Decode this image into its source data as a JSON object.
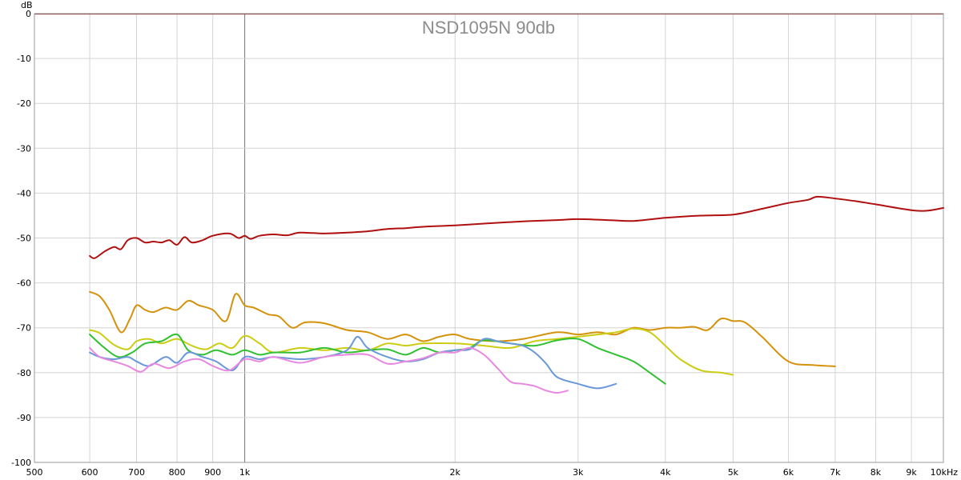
{
  "chart_data": {
    "type": "line",
    "title": "NSD1095N 90db",
    "ylabel": "dB",
    "xlabel": "",
    "x_scale": "log",
    "xlim": [
      500,
      10000
    ],
    "ylim": [
      -100,
      0
    ],
    "grid": true,
    "x_ticks": [
      500,
      600,
      700,
      800,
      900,
      1000,
      2000,
      3000,
      4000,
      5000,
      6000,
      7000,
      8000,
      9000,
      10000
    ],
    "x_tick_labels": [
      "500",
      "600",
      "700",
      "800",
      "900",
      "1k",
      "2k",
      "3k",
      "4k",
      "5k",
      "6k",
      "7k",
      "8k",
      "9k",
      "10kHz"
    ],
    "y_ticks": [
      0,
      -10,
      -20,
      -30,
      -40,
      -50,
      -60,
      -70,
      -80,
      -90,
      -100
    ],
    "y_tick_labels": [
      "0",
      "-10",
      "-20",
      "-30",
      "-40",
      "-50",
      "-60",
      "-70",
      "-80",
      "-90",
      "-100"
    ],
    "series": [
      {
        "color": "#b01010",
        "width": 2,
        "points": [
          [
            600,
            -54
          ],
          [
            610,
            -54.5
          ],
          [
            630,
            -53
          ],
          [
            650,
            -52
          ],
          [
            665,
            -52.5
          ],
          [
            680,
            -50.5
          ],
          [
            700,
            -50
          ],
          [
            720,
            -51
          ],
          [
            740,
            -50.8
          ],
          [
            760,
            -51
          ],
          [
            780,
            -50.5
          ],
          [
            800,
            -51.5
          ],
          [
            820,
            -49.8
          ],
          [
            840,
            -51
          ],
          [
            870,
            -50.5
          ],
          [
            900,
            -49.5
          ],
          [
            950,
            -49
          ],
          [
            980,
            -50
          ],
          [
            1000,
            -49.5
          ],
          [
            1020,
            -50.2
          ],
          [
            1050,
            -49.5
          ],
          [
            1100,
            -49.2
          ],
          [
            1150,
            -49.4
          ],
          [
            1200,
            -48.8
          ],
          [
            1300,
            -49
          ],
          [
            1400,
            -48.8
          ],
          [
            1500,
            -48.5
          ],
          [
            1600,
            -48
          ],
          [
            1700,
            -47.8
          ],
          [
            1800,
            -47.5
          ],
          [
            2000,
            -47.2
          ],
          [
            2200,
            -46.8
          ],
          [
            2500,
            -46.3
          ],
          [
            2800,
            -46
          ],
          [
            3000,
            -45.8
          ],
          [
            3300,
            -46
          ],
          [
            3600,
            -46.2
          ],
          [
            4000,
            -45.5
          ],
          [
            4500,
            -45
          ],
          [
            5000,
            -44.8
          ],
          [
            5500,
            -43.5
          ],
          [
            6000,
            -42.2
          ],
          [
            6400,
            -41.5
          ],
          [
            6600,
            -40.8
          ],
          [
            7000,
            -41.2
          ],
          [
            7500,
            -41.8
          ],
          [
            8000,
            -42.5
          ],
          [
            9000,
            -43.8
          ],
          [
            9500,
            -43.9
          ],
          [
            10000,
            -43.3
          ]
        ]
      },
      {
        "color": "#d4920a",
        "width": 2,
        "points": [
          [
            600,
            -62
          ],
          [
            620,
            -63
          ],
          [
            640,
            -66
          ],
          [
            665,
            -71
          ],
          [
            685,
            -68
          ],
          [
            700,
            -65
          ],
          [
            720,
            -66
          ],
          [
            740,
            -66.5
          ],
          [
            770,
            -65.5
          ],
          [
            800,
            -66
          ],
          [
            830,
            -64
          ],
          [
            860,
            -65
          ],
          [
            900,
            -66
          ],
          [
            940,
            -68.5
          ],
          [
            970,
            -62.5
          ],
          [
            1000,
            -65
          ],
          [
            1030,
            -65.5
          ],
          [
            1080,
            -67
          ],
          [
            1120,
            -67.5
          ],
          [
            1170,
            -70
          ],
          [
            1220,
            -68.8
          ],
          [
            1300,
            -69
          ],
          [
            1400,
            -70.5
          ],
          [
            1500,
            -71
          ],
          [
            1600,
            -72.5
          ],
          [
            1700,
            -71.5
          ],
          [
            1800,
            -73
          ],
          [
            1900,
            -72
          ],
          [
            2000,
            -71.5
          ],
          [
            2100,
            -72.5
          ],
          [
            2300,
            -73
          ],
          [
            2500,
            -72.5
          ],
          [
            2800,
            -71
          ],
          [
            3000,
            -71.5
          ],
          [
            3200,
            -71
          ],
          [
            3400,
            -71.5
          ],
          [
            3600,
            -70
          ],
          [
            3800,
            -70.5
          ],
          [
            4000,
            -70
          ],
          [
            4200,
            -70
          ],
          [
            4400,
            -69.8
          ],
          [
            4600,
            -70.5
          ],
          [
            4800,
            -68
          ],
          [
            5000,
            -68.5
          ],
          [
            5200,
            -68.8
          ],
          [
            5500,
            -72
          ],
          [
            6000,
            -77.5
          ],
          [
            6500,
            -78.3
          ],
          [
            7000,
            -78.6
          ]
        ]
      },
      {
        "color": "#cccc14",
        "width": 2,
        "points": [
          [
            600,
            -70.5
          ],
          [
            620,
            -71.2
          ],
          [
            650,
            -73.8
          ],
          [
            680,
            -74.8
          ],
          [
            700,
            -73
          ],
          [
            730,
            -72.5
          ],
          [
            760,
            -73.5
          ],
          [
            800,
            -72.5
          ],
          [
            840,
            -74
          ],
          [
            880,
            -74.8
          ],
          [
            920,
            -73.5
          ],
          [
            960,
            -74.5
          ],
          [
            1000,
            -71.8
          ],
          [
            1050,
            -73.5
          ],
          [
            1100,
            -75.5
          ],
          [
            1200,
            -74.5
          ],
          [
            1300,
            -75
          ],
          [
            1400,
            -74.5
          ],
          [
            1500,
            -75
          ],
          [
            1600,
            -73.5
          ],
          [
            1700,
            -74
          ],
          [
            1800,
            -73.5
          ],
          [
            2000,
            -73.5
          ],
          [
            2200,
            -74
          ],
          [
            2400,
            -74.5
          ],
          [
            2600,
            -73
          ],
          [
            2800,
            -72.5
          ],
          [
            3000,
            -72
          ],
          [
            3200,
            -71.5
          ],
          [
            3400,
            -71
          ],
          [
            3600,
            -70.2
          ],
          [
            3800,
            -71
          ],
          [
            4000,
            -74
          ],
          [
            4200,
            -77
          ],
          [
            4500,
            -79.5
          ],
          [
            4800,
            -80
          ],
          [
            5000,
            -80.5
          ]
        ]
      },
      {
        "color": "#30c030",
        "width": 2,
        "points": [
          [
            600,
            -71.5
          ],
          [
            630,
            -74.5
          ],
          [
            660,
            -76.5
          ],
          [
            690,
            -75.5
          ],
          [
            720,
            -73.5
          ],
          [
            760,
            -73
          ],
          [
            800,
            -71.5
          ],
          [
            830,
            -75
          ],
          [
            870,
            -76
          ],
          [
            910,
            -75
          ],
          [
            960,
            -76
          ],
          [
            1000,
            -75
          ],
          [
            1050,
            -76
          ],
          [
            1100,
            -75.5
          ],
          [
            1200,
            -75.5
          ],
          [
            1300,
            -74.5
          ],
          [
            1400,
            -75.5
          ],
          [
            1500,
            -75
          ],
          [
            1600,
            -74.8
          ],
          [
            1700,
            -76
          ],
          [
            1800,
            -74.5
          ],
          [
            1900,
            -75.5
          ],
          [
            2000,
            -75
          ],
          [
            2100,
            -74.5
          ],
          [
            2200,
            -72.8
          ],
          [
            2400,
            -73.5
          ],
          [
            2600,
            -74
          ],
          [
            2800,
            -72.8
          ],
          [
            3000,
            -72.5
          ],
          [
            3200,
            -74.5
          ],
          [
            3400,
            -76
          ],
          [
            3600,
            -77.5
          ],
          [
            3800,
            -80
          ],
          [
            4000,
            -82.5
          ]
        ]
      },
      {
        "color": "#6a98d8",
        "width": 2,
        "points": [
          [
            600,
            -75.5
          ],
          [
            620,
            -76.5
          ],
          [
            650,
            -77
          ],
          [
            680,
            -76.5
          ],
          [
            700,
            -77.5
          ],
          [
            730,
            -78.5
          ],
          [
            770,
            -76.5
          ],
          [
            800,
            -77.8
          ],
          [
            830,
            -75.5
          ],
          [
            870,
            -76.5
          ],
          [
            910,
            -77.5
          ],
          [
            960,
            -79.5
          ],
          [
            1000,
            -76.5
          ],
          [
            1050,
            -77
          ],
          [
            1100,
            -76.5
          ],
          [
            1200,
            -77
          ],
          [
            1300,
            -76.5
          ],
          [
            1400,
            -75
          ],
          [
            1450,
            -72
          ],
          [
            1500,
            -74.5
          ],
          [
            1600,
            -76.5
          ],
          [
            1700,
            -77.5
          ],
          [
            1800,
            -77
          ],
          [
            1900,
            -75.5
          ],
          [
            2000,
            -75
          ],
          [
            2100,
            -74.8
          ],
          [
            2200,
            -72.5
          ],
          [
            2300,
            -73
          ],
          [
            2400,
            -73.5
          ],
          [
            2500,
            -74
          ],
          [
            2600,
            -75.5
          ],
          [
            2700,
            -78
          ],
          [
            2800,
            -81
          ],
          [
            3000,
            -82.5
          ],
          [
            3200,
            -83.5
          ],
          [
            3400,
            -82.5
          ]
        ]
      },
      {
        "color": "#e888e0",
        "width": 2,
        "points": [
          [
            600,
            -74.5
          ],
          [
            620,
            -76.5
          ],
          [
            650,
            -77.5
          ],
          [
            680,
            -78.5
          ],
          [
            710,
            -79.8
          ],
          [
            740,
            -78
          ],
          [
            780,
            -79
          ],
          [
            820,
            -77.5
          ],
          [
            860,
            -77
          ],
          [
            900,
            -78.5
          ],
          [
            950,
            -79.5
          ],
          [
            1000,
            -77
          ],
          [
            1050,
            -77.5
          ],
          [
            1100,
            -76.5
          ],
          [
            1200,
            -77.8
          ],
          [
            1300,
            -76.5
          ],
          [
            1400,
            -76
          ],
          [
            1500,
            -76
          ],
          [
            1600,
            -78
          ],
          [
            1700,
            -77.5
          ],
          [
            1800,
            -76.8
          ],
          [
            1900,
            -75.5
          ],
          [
            2000,
            -75.5
          ],
          [
            2100,
            -74.5
          ],
          [
            2200,
            -76
          ],
          [
            2300,
            -79
          ],
          [
            2400,
            -82
          ],
          [
            2500,
            -82.5
          ],
          [
            2600,
            -83
          ],
          [
            2700,
            -84
          ],
          [
            2800,
            -84.5
          ],
          [
            2900,
            -84
          ]
        ]
      }
    ]
  }
}
